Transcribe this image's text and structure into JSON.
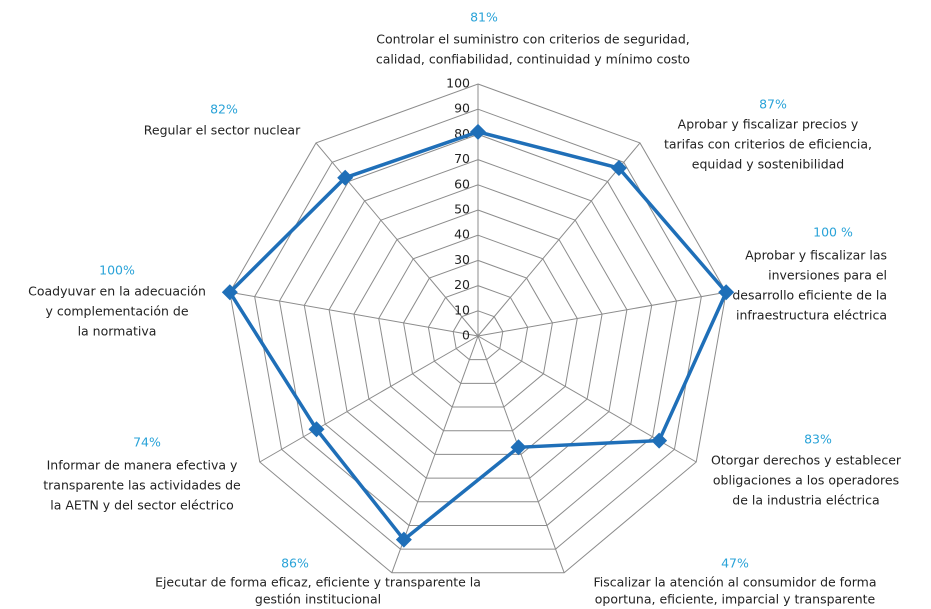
{
  "chart_data": {
    "type": "radar",
    "categories": [
      [
        "Controlar el suministro con criterios de seguridad,",
        "calidad, confiabilidad, continuidad y mínimo costo"
      ],
      [
        "Aprobar y fiscalizar precios y",
        "tarifas con criterios de eficiencia,",
        "equidad y sostenibilidad"
      ],
      [
        "Aprobar y fiscalizar las",
        "inversiones para el",
        "desarrollo eficiente de la",
        "infraestructura eléctrica"
      ],
      [
        "Otorgar derechos y establecer",
        "obligaciones a los operadores",
        "de la industria eléctrica"
      ],
      [
        "Fiscalizar la atención al consumidor de forma",
        "oportuna, eficiente, imparcial y transparente"
      ],
      [
        "Ejecutar de forma eficaz, eficiente y transparente la",
        "gestión institucional"
      ],
      [
        "Informar de manera efectiva y",
        "transparente las actividades de",
        "la AETN y del sector eléctrico"
      ],
      [
        "Coadyuvar en la adecuación",
        "y complementación de",
        "la normativa"
      ],
      [
        "Regular el sector nuclear"
      ]
    ],
    "values": [
      81,
      87,
      100,
      83,
      47,
      86,
      74,
      100,
      82
    ],
    "value_labels": [
      "81%",
      "87%",
      "100 %",
      "83%",
      "47%",
      "86%",
      "74%",
      "100%",
      "82%"
    ],
    "color": "#1f6fb8",
    "value_label_color": "#2aa3d8",
    "ylim": [
      0,
      100
    ],
    "yticks": [
      0,
      10,
      20,
      30,
      40,
      50,
      60,
      70,
      80,
      90,
      100
    ],
    "grid": true
  }
}
